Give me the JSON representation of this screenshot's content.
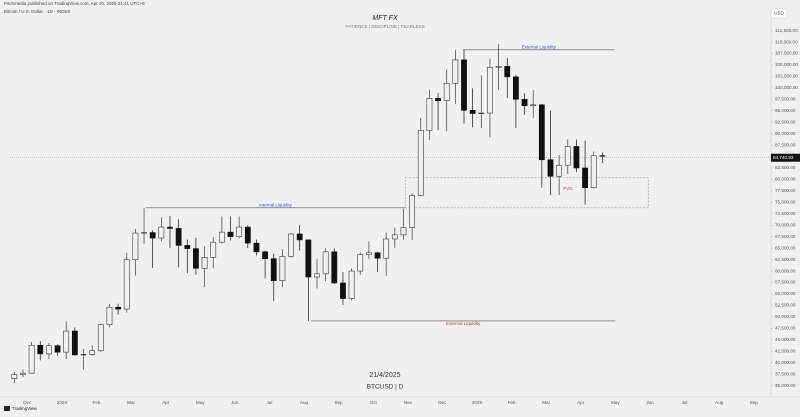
{
  "header": {
    "publisher": "Pitchmedia published on TradingView.com, Apr 20, 2025 21:41 UTC+8",
    "symbol_info": "Bitcoin / U.S. Dollar · 1D · INDEX",
    "currency": "USD",
    "brand": "TradingView"
  },
  "chart_data": {
    "type": "candlestick",
    "title": "MFT FX",
    "subtitle": "PATIENCE | DISCIPLINE | FEARLESS",
    "date_label": "21/4/2025",
    "symbol_label": "BTCUSD | D",
    "categories": [
      null,
      null,
      "Dec",
      null,
      null,
      null,
      "2024",
      null,
      null,
      null,
      "Feb",
      null,
      null,
      null,
      "Mar",
      null,
      null,
      null,
      "Apr",
      null,
      null,
      null,
      "May",
      null,
      null,
      null,
      "Jun",
      null,
      null,
      null,
      "Jul",
      null,
      null,
      null,
      "Aug",
      null,
      null,
      null,
      "Sep",
      null,
      null,
      null,
      "Oct",
      null,
      null,
      null,
      "Nov",
      null,
      null,
      null,
      "Dec",
      null,
      null,
      null,
      "2025",
      null,
      null,
      null,
      "Feb",
      null,
      null,
      null,
      "Mar",
      null,
      null,
      null,
      "Apr",
      null,
      null,
      null,
      "May",
      null,
      null,
      null,
      "Jun",
      null,
      null,
      null,
      "Jul",
      null,
      null,
      null,
      "Aug",
      null,
      null,
      null,
      "Sep",
      null
    ],
    "open": [
      36500,
      37400,
      37700,
      43800,
      41900,
      43700,
      42300,
      46900,
      41700,
      41800,
      42600,
      48300,
      52100,
      51700,
      62500,
      68300,
      68400,
      67200,
      69600,
      69300,
      65600,
      64900,
      60600,
      63000,
      66300,
      68500,
      67500,
      69600,
      66100,
      64200,
      62700,
      57900,
      63200,
      68100,
      66800,
      58700,
      59400,
      64200,
      57400,
      54000,
      60000,
      63600,
      64000,
      62800,
      67000,
      67900,
      69500,
      76500,
      90700,
      97700,
      97200,
      101000,
      106100,
      95100,
      94400,
      94500,
      104500,
      104700,
      102400,
      97500,
      96100,
      96300,
      84300,
      80700,
      83100,
      87200,
      82500,
      78200,
      85200,
      null,
      null,
      null,
      null,
      null,
      null,
      null,
      null,
      null,
      null,
      null,
      null,
      null,
      null,
      null,
      null,
      null,
      null,
      null
    ],
    "high": [
      38000,
      38500,
      44500,
      44700,
      44300,
      44000,
      49000,
      47700,
      43000,
      43800,
      48500,
      52800,
      52900,
      64000,
      69200,
      73800,
      68900,
      71700,
      72000,
      71300,
      66900,
      67300,
      65400,
      67400,
      71900,
      71900,
      71900,
      70000,
      66900,
      64500,
      63800,
      64800,
      68300,
      70000,
      66900,
      62700,
      65000,
      64900,
      59800,
      60600,
      64100,
      66500,
      64200,
      68400,
      69500,
      73600,
      77000,
      93400,
      99600,
      98900,
      104000,
      108300,
      108400,
      99900,
      102700,
      106400,
      109600,
      106500,
      102800,
      98800,
      99500,
      96500,
      95000,
      85300,
      88800,
      88700,
      88500,
      86100,
      85900,
      null,
      null,
      null,
      null,
      null,
      null,
      null,
      null,
      null,
      null,
      null,
      null,
      null,
      null,
      null,
      null,
      null,
      null,
      null
    ],
    "low": [
      35500,
      36800,
      37600,
      40500,
      40800,
      41500,
      40800,
      41500,
      38500,
      41500,
      42300,
      47700,
      50500,
      50900,
      59000,
      66000,
      60700,
      66500,
      65000,
      60800,
      59600,
      59200,
      56500,
      60600,
      66000,
      66700,
      67100,
      65000,
      63400,
      58400,
      53500,
      56500,
      63000,
      64500,
      49100,
      56200,
      57800,
      57200,
      52600,
      53600,
      59200,
      62700,
      59800,
      58900,
      65100,
      66800,
      66800,
      76300,
      88600,
      90800,
      90500,
      96500,
      92200,
      91400,
      91200,
      89200,
      99600,
      97800,
      91200,
      94100,
      93400,
      78200,
      76600,
      76600,
      81200,
      81600,
      74500,
      78000,
      83600,
      null,
      null,
      null,
      null,
      null,
      null,
      null,
      null,
      null,
      null,
      null,
      null,
      null,
      null,
      null,
      null,
      null,
      null,
      null
    ],
    "close": [
      37400,
      37700,
      43800,
      41900,
      43700,
      42300,
      46900,
      41700,
      41800,
      42600,
      48300,
      52100,
      51700,
      62500,
      68300,
      68400,
      67200,
      69600,
      69300,
      65600,
      64900,
      60600,
      63000,
      66300,
      68500,
      67500,
      69600,
      66100,
      64200,
      62700,
      57900,
      63200,
      68100,
      66800,
      58700,
      59400,
      64200,
      57400,
      54000,
      60000,
      63600,
      64000,
      62800,
      67000,
      67900,
      69500,
      76500,
      90700,
      97700,
      97200,
      101000,
      106100,
      95100,
      94400,
      94500,
      104500,
      104700,
      102400,
      97500,
      96100,
      96300,
      84300,
      80700,
      83100,
      87200,
      82500,
      78200,
      85200,
      85100,
      null,
      null,
      null,
      null,
      null,
      null,
      null,
      null,
      null,
      null,
      null,
      null,
      null,
      null,
      null,
      null,
      null,
      null,
      null
    ],
    "up_color": "#3a3a3a",
    "down_color": "#111111",
    "ylim": [
      32500,
      117000
    ],
    "yticks": [
      {
        "value": 35000,
        "label": "35,000.00"
      },
      {
        "value": 37500,
        "label": "37,500.00"
      },
      {
        "value": 40000,
        "label": "40,000.00"
      },
      {
        "value": 42500,
        "label": "42,500.00"
      },
      {
        "value": 45000,
        "label": "45,000.00"
      },
      {
        "value": 47500,
        "label": "47,500.00"
      },
      {
        "value": 50000,
        "label": "50,000.00"
      },
      {
        "value": 52500,
        "label": "52,500.00"
      },
      {
        "value": 55000,
        "label": "55,000.00"
      },
      {
        "value": 57500,
        "label": "57,500.00"
      },
      {
        "value": 60000,
        "label": "60,000.00"
      },
      {
        "value": 62500,
        "label": "62,500.00"
      },
      {
        "value": 65000,
        "label": "65,000.00"
      },
      {
        "value": 67500,
        "label": "67,500.00"
      },
      {
        "value": 70000,
        "label": "70,000.00"
      },
      {
        "value": 72500,
        "label": "72,500.00"
      },
      {
        "value": 75000,
        "label": "75,000.00"
      },
      {
        "value": 77500,
        "label": "77,500.00"
      },
      {
        "value": 80000,
        "label": "80,000.00"
      },
      {
        "value": 82500,
        "label": "82,500.00"
      },
      {
        "value": 85000,
        "label": "85,000.00"
      },
      {
        "value": 87500,
        "label": "87,500.00"
      },
      {
        "value": 90000,
        "label": "90,000.00"
      },
      {
        "value": 92500,
        "label": "92,500.00"
      },
      {
        "value": 95000,
        "label": "95,000.00"
      },
      {
        "value": 97500,
        "label": "97,500.00"
      },
      {
        "value": 100000,
        "label": "100,000.00"
      },
      {
        "value": 102500,
        "label": "102,500.00"
      },
      {
        "value": 105000,
        "label": "105,000.00"
      },
      {
        "value": 107500,
        "label": "107,500.00"
      },
      {
        "value": 110000,
        "label": "110,000.00"
      },
      {
        "value": 112500,
        "label": "112,500.00"
      }
    ],
    "last_price": {
      "value": 84740.93,
      "label": "84,740.93"
    },
    "levels": [
      {
        "label": "External Liquidity",
        "value": 108300,
        "color": "#3b57c4"
      },
      {
        "label": "Internal Liquidity",
        "value": 73800,
        "color": "#3b57c4"
      },
      {
        "label": "External Liquidity",
        "value": 49100,
        "color": "#d0324b"
      }
    ],
    "zones": [
      {
        "label": "FVG",
        "from": 73800,
        "to": 80400,
        "color": "#d0324b"
      }
    ]
  }
}
